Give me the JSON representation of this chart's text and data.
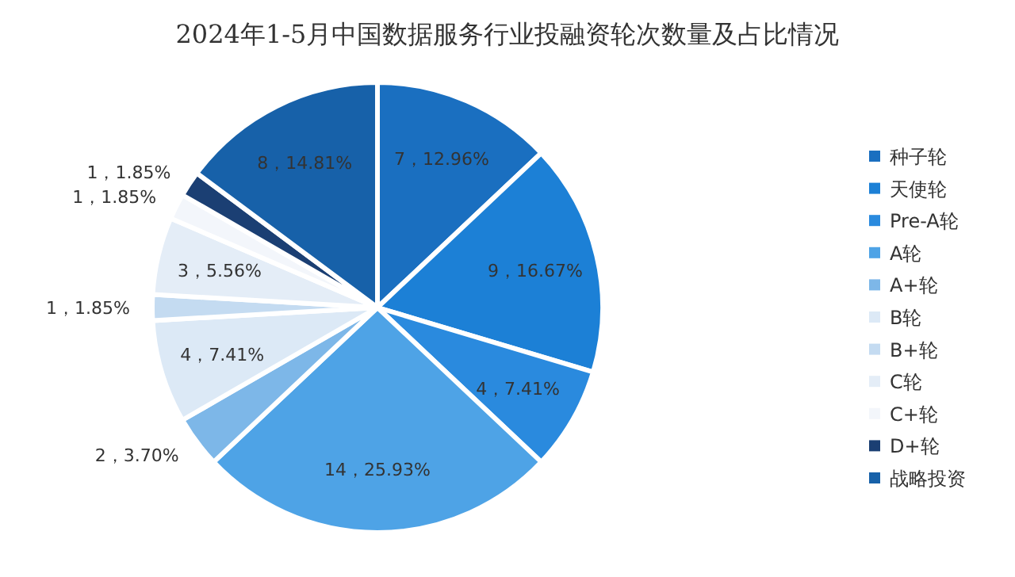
{
  "chart_data": {
    "type": "pie",
    "title": "2024年1-5月中国数据服务行业投融资轮次数量及占比情况",
    "categories": [
      "种子轮",
      "天使轮",
      "Pre-A轮",
      "A轮",
      "A+轮",
      "B轮",
      "B+轮",
      "C轮",
      "C+轮",
      "D+轮",
      "战略投资"
    ],
    "values": [
      7,
      9,
      4,
      14,
      2,
      4,
      1,
      3,
      1,
      1,
      8
    ],
    "value_labels": [
      "7，12.96%",
      "9，16.67%",
      "4，7.41%",
      "14，25.93%",
      "2，3.70%",
      "4，7.41%",
      "1，1.85%",
      "3，5.56%",
      "1，1.85%",
      "1，1.85%",
      "8，14.81%"
    ],
    "colors": [
      "#1a6fc0",
      "#1c80d6",
      "#2a8ade",
      "#4ea3e6",
      "#7db7e8",
      "#dce9f6",
      "#c4dbf1",
      "#e4edf7",
      "#f3f6fb",
      "#1b3f73",
      "#1761a9"
    ],
    "legend": "right"
  }
}
